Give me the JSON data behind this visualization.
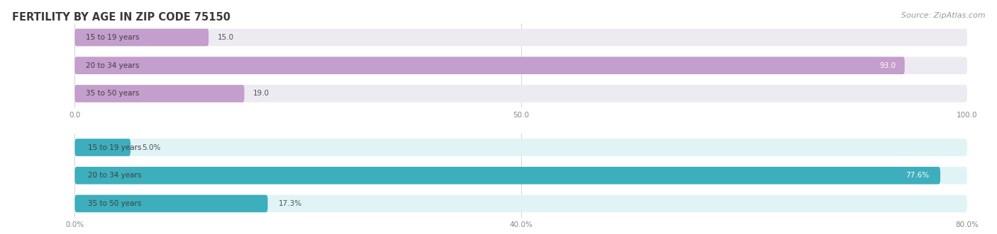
{
  "title": "FERTILITY BY AGE IN ZIP CODE 75150",
  "source": "Source: ZipAtlas.com",
  "top_chart": {
    "categories": [
      "15 to 19 years",
      "20 to 34 years",
      "35 to 50 years"
    ],
    "values": [
      15.0,
      93.0,
      19.0
    ],
    "max_val": 100.0,
    "x_ticks": [
      0.0,
      50.0,
      100.0
    ],
    "x_tick_labels": [
      "0.0",
      "50.0",
      "100.0"
    ],
    "bar_color": "#c49ecc",
    "bg_color": "#eeeaf2"
  },
  "bottom_chart": {
    "categories": [
      "15 to 19 years",
      "20 to 34 years",
      "35 to 50 years"
    ],
    "values": [
      5.0,
      77.6,
      17.3
    ],
    "max_val": 80.0,
    "x_ticks": [
      0.0,
      40.0,
      80.0
    ],
    "x_tick_labels": [
      "0.0%",
      "40.0%",
      "80.0%"
    ],
    "bar_color": "#3daebc",
    "bg_color": "#e0f4f6"
  },
  "title_color": "#3a3a3a",
  "title_fontsize": 10.5,
  "source_color": "#999999",
  "source_fontsize": 8,
  "category_fontsize": 7.5,
  "value_fontsize": 7.5,
  "tick_fontsize": 7.5
}
